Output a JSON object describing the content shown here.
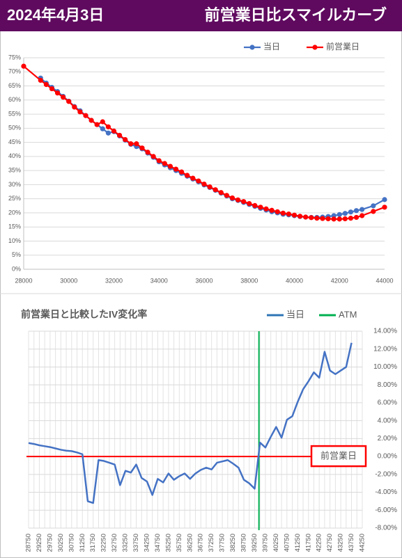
{
  "header": {
    "date": "2024年4月3日",
    "title": "前営業日比スマイルカーブ"
  },
  "chart_data": [
    {
      "type": "line",
      "x": [
        28000,
        28750,
        29000,
        29250,
        29500,
        29750,
        30000,
        30250,
        30500,
        30750,
        31000,
        31250,
        31500,
        31750,
        32000,
        32250,
        32500,
        32750,
        33000,
        33250,
        33500,
        33750,
        34000,
        34250,
        34500,
        34750,
        35000,
        35250,
        35500,
        35750,
        36000,
        36250,
        36500,
        36750,
        37000,
        37250,
        37500,
        37750,
        38000,
        38250,
        38500,
        38750,
        39000,
        39250,
        39500,
        39750,
        40000,
        40250,
        40500,
        40750,
        41000,
        41250,
        41500,
        41750,
        42000,
        42250,
        42500,
        42750,
        43000,
        43500,
        44000
      ],
      "series": [
        {
          "name": "当日",
          "color": "#4472c4",
          "values": [
            null,
            67.8,
            66,
            64.5,
            63,
            61.3,
            59.6,
            57.7,
            56.2,
            54.5,
            52.8,
            51.3,
            49.8,
            48.3,
            48.8,
            47.3,
            45.8,
            44.3,
            43.5,
            42.7,
            41.2,
            39.7,
            38.1,
            37,
            36,
            35,
            34,
            33,
            32,
            31,
            29.9,
            29,
            28,
            27,
            26,
            25,
            24.4,
            23.7,
            23,
            22.3,
            21.6,
            21,
            20.4,
            20,
            19.5,
            19.3,
            19,
            18.7,
            18.5,
            18.4,
            18.4,
            18.5,
            18.7,
            19,
            19.4,
            19.8,
            20.3,
            20.8,
            21.2,
            22.5,
            24.7
          ]
        },
        {
          "name": "前営業日",
          "color": "#ff0000",
          "values": [
            72,
            67,
            65.5,
            64,
            62.5,
            61,
            59.5,
            57.5,
            55.8,
            54.5,
            52.8,
            51.3,
            52.3,
            50.5,
            49,
            47.5,
            46,
            44.5,
            44.5,
            43,
            41.5,
            40,
            38.5,
            37.5,
            36.5,
            35.5,
            34.5,
            33.3,
            32.3,
            31.3,
            30.2,
            29.2,
            28.2,
            27.2,
            26.2,
            25.3,
            24.6,
            24,
            23.3,
            22.6,
            22,
            21.4,
            20.9,
            20.4,
            19.9,
            19.6,
            19.2,
            18.8,
            18.5,
            18.3,
            18.1,
            18,
            17.9,
            17.8,
            17.8,
            17.9,
            18.1,
            18.4,
            19,
            20.5,
            22
          ]
        }
      ],
      "xlim": [
        28000,
        44000
      ],
      "xticks": [
        28000,
        30000,
        32000,
        34000,
        36000,
        38000,
        40000,
        42000,
        44000
      ],
      "ylim": [
        0,
        75
      ],
      "yticks": [
        {
          "value": 0,
          "label": "0%"
        },
        {
          "value": 5,
          "label": "5%"
        },
        {
          "value": 10,
          "label": "10%"
        },
        {
          "value": 15,
          "label": "15%"
        },
        {
          "value": 20,
          "label": "20%"
        },
        {
          "value": 25,
          "label": "25%"
        },
        {
          "value": 30,
          "label": "30%"
        },
        {
          "value": 35,
          "label": "35%"
        },
        {
          "value": 40,
          "label": "40%"
        },
        {
          "value": 45,
          "label": "45%"
        },
        {
          "value": 50,
          "label": "50%"
        },
        {
          "value": 55,
          "label": "55%"
        },
        {
          "value": 60,
          "label": "60%"
        },
        {
          "value": 65,
          "label": "65%"
        },
        {
          "value": 70,
          "label": "70%"
        },
        {
          "value": 75,
          "label": "75%"
        }
      ],
      "grid": true,
      "markers": true,
      "legend": "top"
    },
    {
      "type": "line",
      "title": "前営業日と比較したIV変化率",
      "x": [
        28750,
        29000,
        29250,
        29500,
        29750,
        30000,
        30250,
        30500,
        30750,
        31000,
        31250,
        31500,
        31750,
        32000,
        32250,
        32500,
        32750,
        33000,
        33250,
        33500,
        33750,
        34000,
        34250,
        34500,
        34750,
        35000,
        35250,
        35500,
        35750,
        36000,
        36250,
        36500,
        36750,
        37000,
        37250,
        37500,
        37750,
        38000,
        38250,
        38500,
        38750,
        39000,
        39250,
        39500,
        39750,
        40000,
        40250,
        40500,
        40750,
        41000,
        41250,
        41500,
        41750,
        42000,
        42250,
        42500,
        42750,
        43000,
        43250,
        43500,
        43750,
        44000,
        44250
      ],
      "series": [
        {
          "name": "当日",
          "color": "#4472c4",
          "values": [
            1.5,
            1.4,
            1.25,
            1.15,
            1.05,
            0.9,
            0.75,
            0.65,
            0.6,
            0.45,
            0.25,
            -5.0,
            -5.2,
            -0.4,
            -0.5,
            -0.7,
            -0.9,
            -3.2,
            -1.6,
            -1.8,
            -0.9,
            -2.4,
            -2.8,
            -4.3,
            -2.5,
            -2.9,
            -1.9,
            -2.6,
            -2.2,
            -1.9,
            -2.5,
            -1.9,
            -1.5,
            -1.25,
            -1.45,
            -0.7,
            -0.55,
            -0.4,
            -0.8,
            -1.25,
            -2.6,
            -3.0,
            -3.6,
            1.55,
            1.0,
            2.2,
            3.3,
            2.1,
            4.1,
            4.5,
            6.1,
            7.5,
            8.4,
            9.4,
            8.8,
            11.7,
            9.6,
            9.2,
            9.6,
            10.0,
            12.7,
            null,
            null
          ]
        }
      ],
      "legend_series": {
        "name": "当日",
        "color": "#2e75b6"
      },
      "atm": {
        "name": "ATM",
        "color": "#00b050",
        "x": 39450
      },
      "reference": {
        "label": "前営業日",
        "value": 0,
        "color": "#ff0000"
      },
      "xlim": [
        28750,
        44250
      ],
      "xticks": [
        28750,
        29250,
        29750,
        30250,
        30750,
        31250,
        31750,
        32250,
        32750,
        33250,
        33750,
        34250,
        34750,
        35250,
        35750,
        36250,
        36750,
        37250,
        37750,
        38250,
        38750,
        39250,
        39750,
        40250,
        40750,
        41250,
        41750,
        42250,
        42750,
        43250,
        43750,
        44250
      ],
      "ylim": [
        -8,
        14
      ],
      "yticks": [
        {
          "value": 14,
          "label": "14.00%"
        },
        {
          "value": 12,
          "label": "12.00%"
        },
        {
          "value": 10,
          "label": "10.00%"
        },
        {
          "value": 8,
          "label": "8.00%"
        },
        {
          "value": 6,
          "label": "6.00%"
        },
        {
          "value": 4,
          "label": "4.00%"
        },
        {
          "value": 2,
          "label": "2.00%"
        },
        {
          "value": 0,
          "label": "0.00%"
        },
        {
          "value": -2,
          "label": "-2.00%"
        },
        {
          "value": -4,
          "label": "-4.00%"
        },
        {
          "value": -6,
          "label": "-6.00%"
        },
        {
          "value": -8,
          "label": "-8.00%"
        }
      ],
      "grid": true,
      "xgrid": true,
      "markers": false,
      "legend": "top-right"
    }
  ]
}
